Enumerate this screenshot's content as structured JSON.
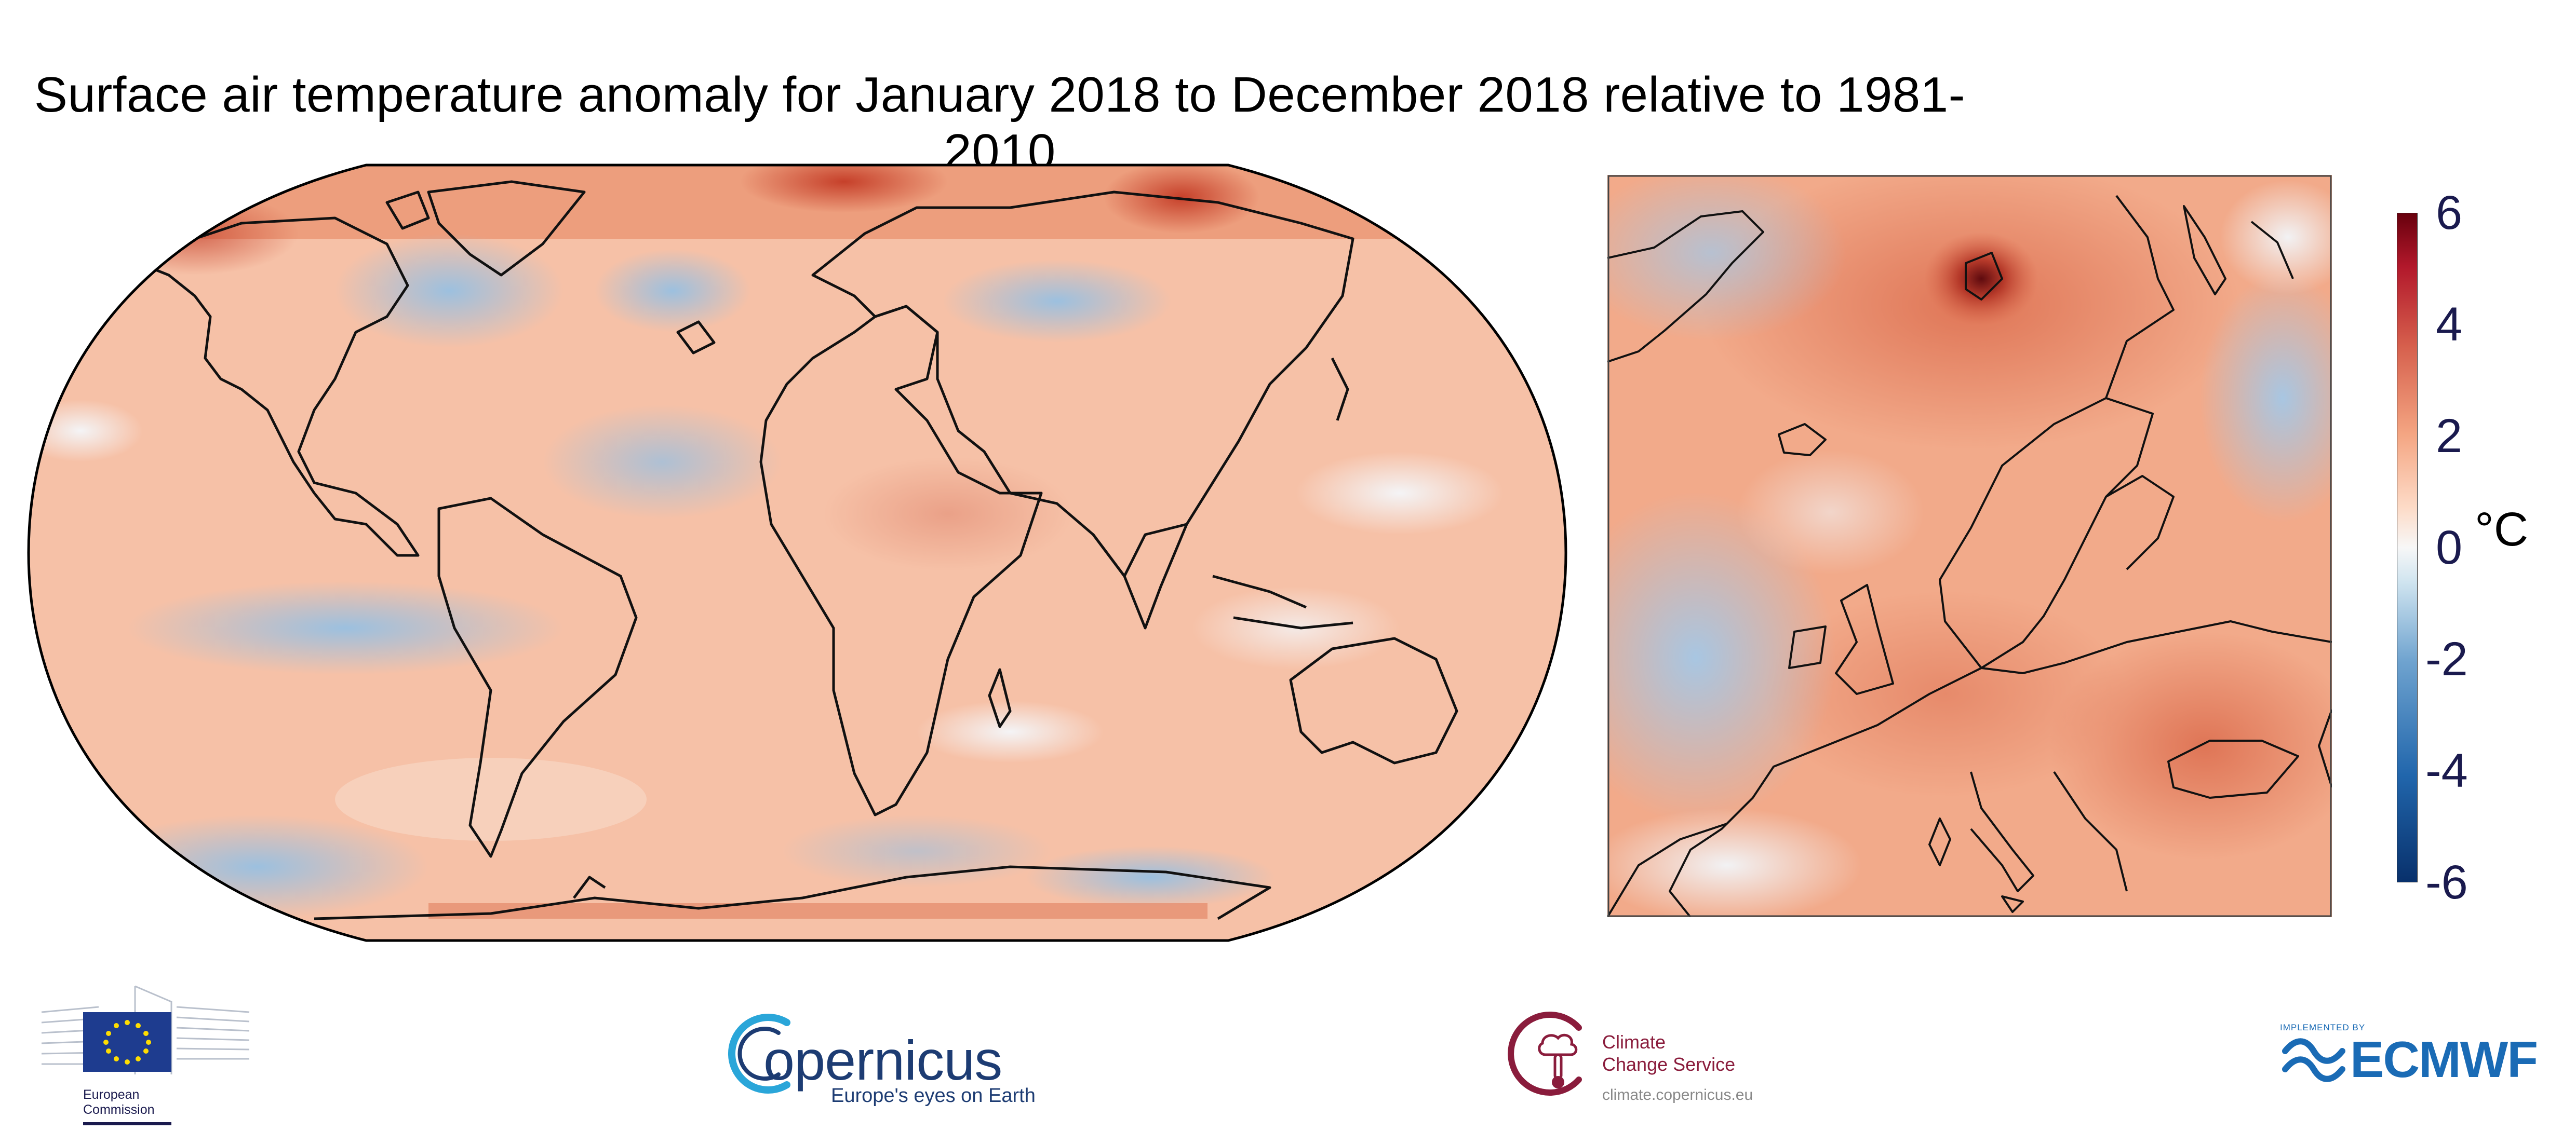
{
  "title": "Surface air temperature anomaly for January 2018 to December 2018 relative to 1981-2010",
  "panels": {
    "world": "global map",
    "europe": "europe map"
  },
  "colorbar": {
    "ticks": [
      "6",
      "4",
      "2",
      "0",
      "-2",
      "-4",
      "-6"
    ],
    "unit": "°C",
    "range": [
      -6,
      6
    ],
    "colors": [
      "#08306b",
      "#2166ac",
      "#6fa3cf",
      "#d1e5f0",
      "#f7f7f7",
      "#fddbc7",
      "#f4a582",
      "#e0684a",
      "#c1392b",
      "#67000d"
    ]
  },
  "logos": {
    "ec": {
      "line1": "European",
      "line2": "Commission"
    },
    "copernicus": {
      "word": "opernicus",
      "tagline": "Europe's eyes on Earth"
    },
    "c3s": {
      "line1": "Climate",
      "line2": "Change Service",
      "url": "climate.copernicus.eu"
    },
    "ecmwf": {
      "tag": "IMPLEMENTED BY",
      "word": "ECMWF"
    }
  }
}
